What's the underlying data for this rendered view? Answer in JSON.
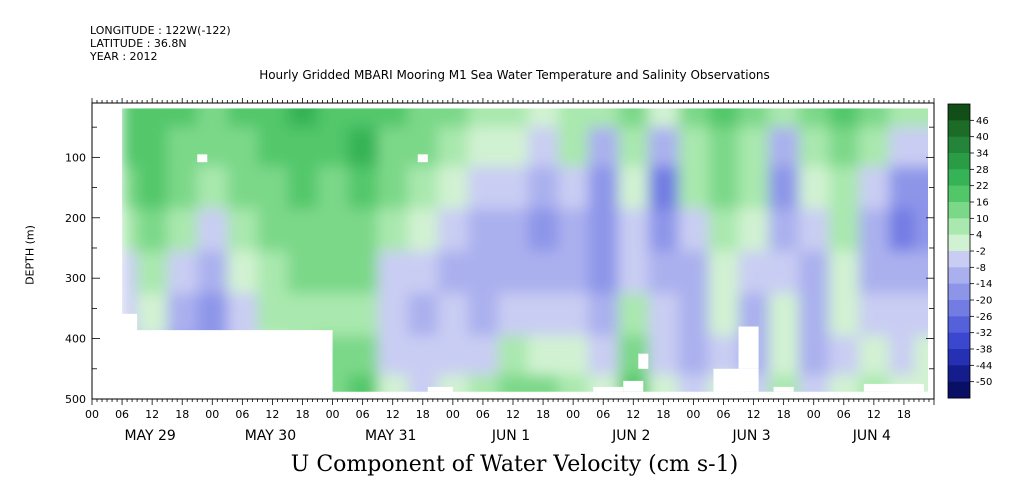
{
  "header": {
    "longitude": "LONGITUDE : 122W(-122)",
    "latitude": "LATITUDE : 36.8N",
    "year": "YEAR : 2012",
    "title": "Hourly Gridded MBARI Mooring M1 Sea Water Temperature and Salinity Observations"
  },
  "chart_data": {
    "type": "heatmap",
    "title": "Hourly Gridded MBARI Mooring M1 Sea Water Temperature and Salinity Observations",
    "xlabel": "U Component of Water Velocity (cm s-1)",
    "ylabel": "DEPTH (m)",
    "x_range_hours": [
      0,
      168
    ],
    "y_range_m": [
      10,
      500
    ],
    "y_ticks": [
      100,
      200,
      300,
      400,
      500
    ],
    "x_tick_hour_labels": [
      "00",
      "06",
      "12",
      "18"
    ],
    "x_day_labels": [
      "MAY 29",
      "MAY 30",
      "MAY 31",
      "JUN  1",
      "JUN  2",
      "JUN  3",
      "JUN  4"
    ],
    "colorbar_levels": [
      "46",
      "40",
      "34",
      "28",
      "22",
      "16",
      "10",
      "4",
      "-2",
      "-8",
      "-14",
      "-20",
      "-26",
      "-32",
      "-38",
      "-44",
      "-50"
    ],
    "colorbar_colors": [
      "#124f18",
      "#1c6b26",
      "#23843a",
      "#2a9c46",
      "#36b356",
      "#52c76a",
      "#7cd889",
      "#a9e8ae",
      "#d1f2d2",
      "#c9cdf3",
      "#aab0ee",
      "#8d95e9",
      "#727ce3",
      "#5461db",
      "#3a47ce",
      "#2630b2",
      "#151c8c",
      "#0a0f66"
    ],
    "data_columns": [
      {
        "hour": 6,
        "profile": [
          18,
          16,
          12,
          6,
          -4,
          -6,
          -10,
          -12
        ]
      },
      {
        "hour": 12,
        "profile": [
          20,
          18,
          16,
          10,
          4,
          -2,
          -6,
          -8
        ]
      },
      {
        "hour": 18,
        "profile": [
          16,
          14,
          12,
          8,
          -4,
          -12,
          -16,
          -14
        ]
      },
      {
        "hour": 24,
        "profile": [
          14,
          10,
          4,
          -6,
          -14,
          -18,
          -20,
          -16
        ]
      },
      {
        "hour": 30,
        "profile": [
          16,
          14,
          10,
          4,
          -2,
          -6,
          -8,
          -6
        ]
      },
      {
        "hour": 36,
        "profile": [
          20,
          18,
          14,
          10,
          8,
          4,
          2,
          4
        ]
      },
      {
        "hour": 42,
        "profile": [
          22,
          20,
          18,
          14,
          12,
          8,
          6,
          8
        ]
      },
      {
        "hour": 48,
        "profile": [
          18,
          16,
          14,
          12,
          10,
          8,
          10,
          12
        ]
      },
      {
        "hour": 54,
        "profile": [
          20,
          22,
          18,
          14,
          10,
          8,
          12,
          16
        ]
      },
      {
        "hour": 60,
        "profile": [
          16,
          14,
          10,
          4,
          -4,
          -8,
          -6,
          -2
        ]
      },
      {
        "hour": 66,
        "profile": [
          14,
          12,
          8,
          2,
          -6,
          -10,
          -8,
          -4
        ]
      },
      {
        "hour": 72,
        "profile": [
          10,
          6,
          2,
          -6,
          -10,
          -8,
          -4,
          2
        ]
      },
      {
        "hour": 78,
        "profile": [
          6,
          2,
          -6,
          -12,
          -14,
          -10,
          -4,
          4
        ]
      },
      {
        "hour": 84,
        "profile": [
          4,
          0,
          -8,
          -14,
          -12,
          -6,
          4,
          10
        ]
      },
      {
        "hour": 90,
        "profile": [
          2,
          -6,
          -12,
          -16,
          -14,
          -8,
          2,
          12
        ]
      },
      {
        "hour": 96,
        "profile": [
          8,
          4,
          -4,
          -10,
          -12,
          -8,
          -2,
          6
        ]
      },
      {
        "hour": 102,
        "profile": [
          4,
          -10,
          -18,
          -20,
          -16,
          -10,
          -6,
          -2
        ]
      },
      {
        "hour": 108,
        "profile": [
          10,
          6,
          0,
          -8,
          -4,
          8,
          14,
          18
        ]
      },
      {
        "hour": 114,
        "profile": [
          -2,
          -14,
          -22,
          -20,
          -14,
          -8,
          -4,
          2
        ]
      },
      {
        "hour": 120,
        "profile": [
          12,
          8,
          4,
          -4,
          -12,
          -14,
          -10,
          -4
        ]
      },
      {
        "hour": 126,
        "profile": [
          18,
          14,
          10,
          6,
          2,
          -2,
          -4,
          0
        ]
      },
      {
        "hour": 132,
        "profile": [
          12,
          8,
          4,
          0,
          -6,
          -10,
          -12,
          -8
        ]
      },
      {
        "hour": 138,
        "profile": [
          8,
          -10,
          -16,
          -10,
          -4,
          0,
          2,
          6
        ]
      },
      {
        "hour": 144,
        "profile": [
          10,
          6,
          2,
          -6,
          -12,
          -14,
          -10,
          -4
        ]
      },
      {
        "hour": 150,
        "profile": [
          16,
          12,
          8,
          4,
          2,
          -2,
          -4,
          2
        ]
      },
      {
        "hour": 156,
        "profile": [
          10,
          4,
          -4,
          -12,
          -10,
          -6,
          -2,
          4
        ]
      },
      {
        "hour": 162,
        "profile": [
          6,
          -4,
          -16,
          -22,
          -14,
          -8,
          -4,
          0
        ]
      },
      {
        "hour": 166,
        "profile": [
          8,
          -8,
          -18,
          -20,
          -12,
          -6,
          -2,
          2
        ]
      }
    ],
    "profile_depths_m": [
      20,
      80,
      150,
      220,
      290,
      360,
      430,
      490
    ]
  }
}
